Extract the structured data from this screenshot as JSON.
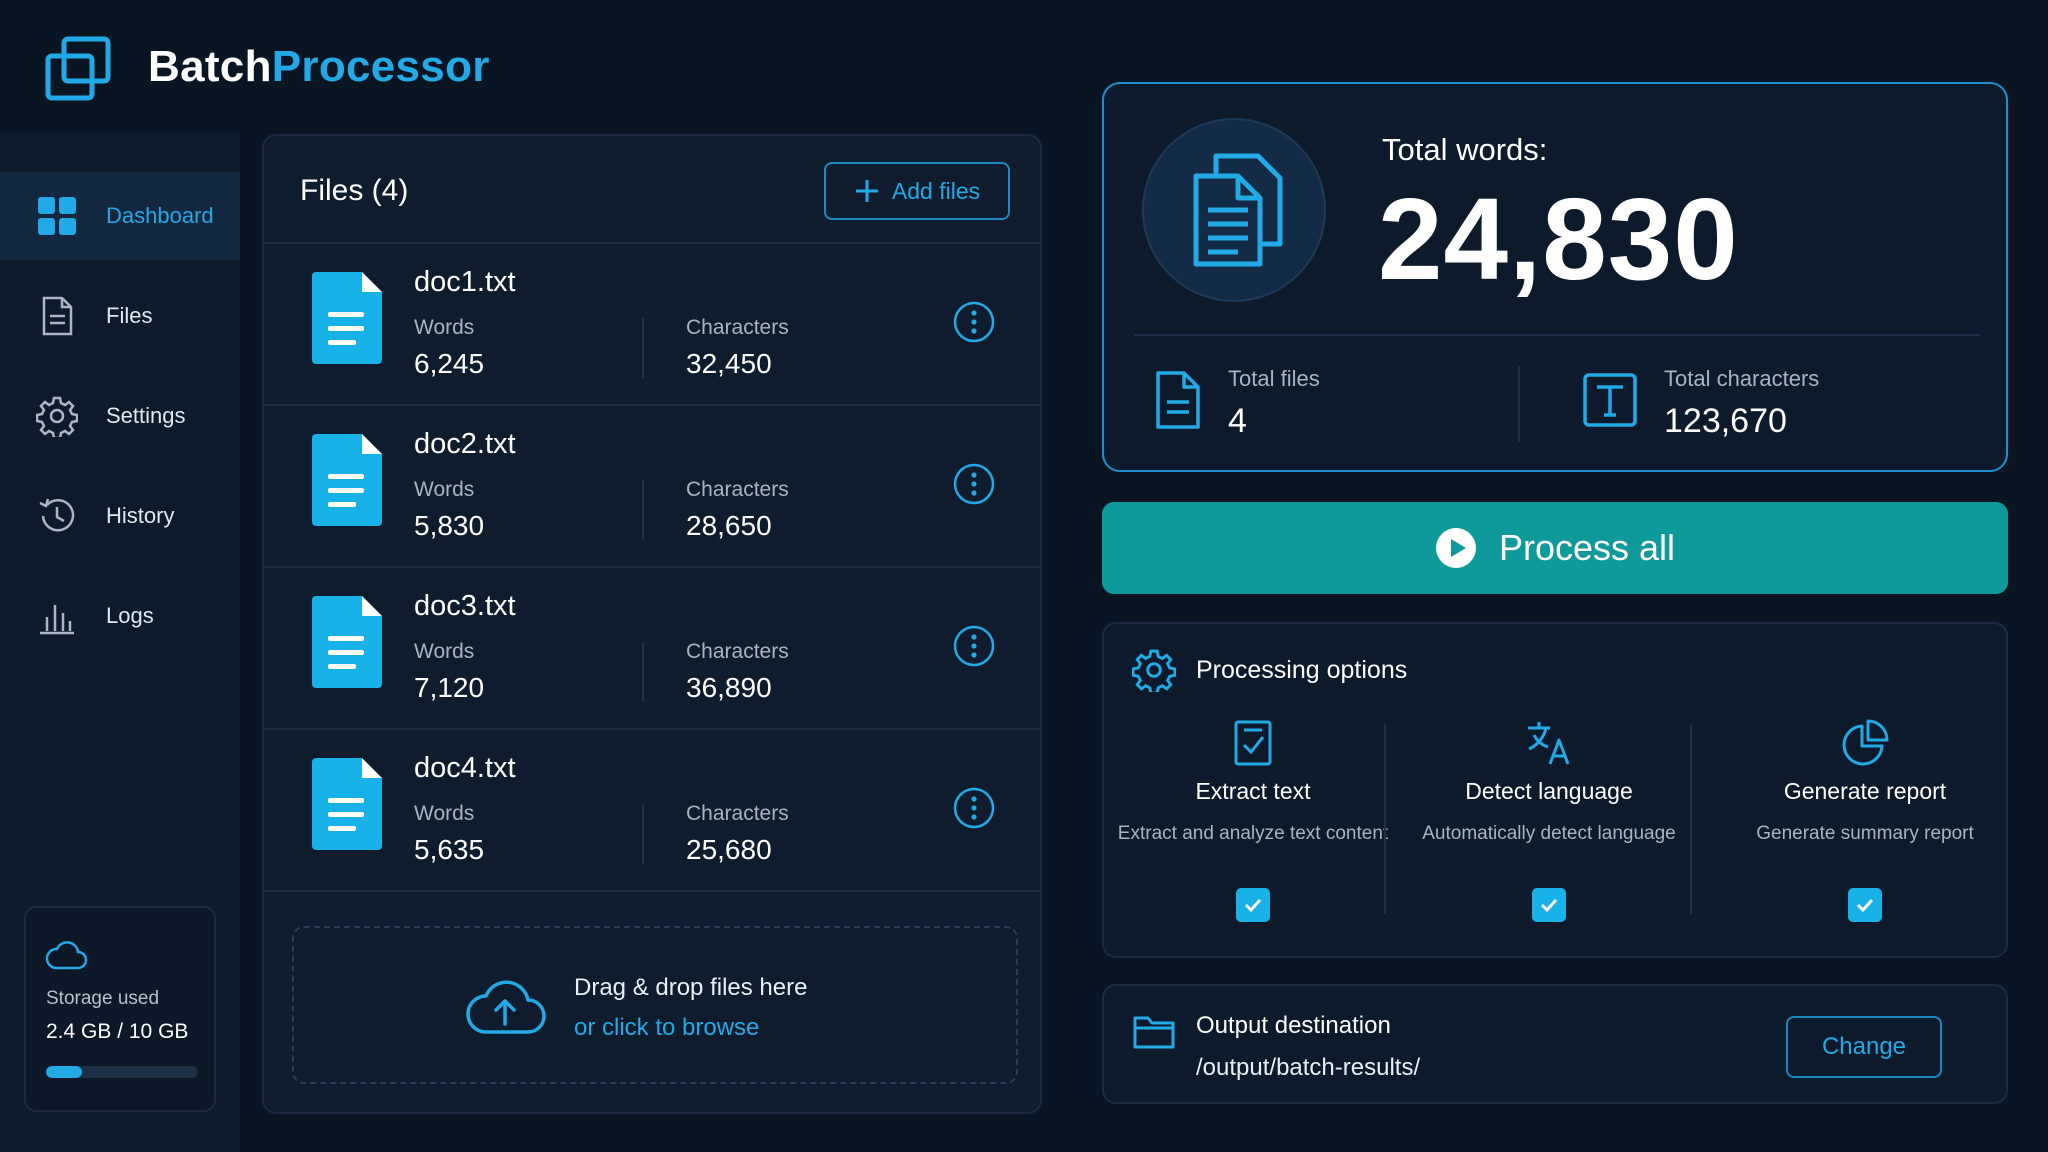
{
  "app": {
    "name_part1": "Batch",
    "name_part2": "Processor"
  },
  "sidebar": {
    "items": [
      {
        "label": "Dashboard",
        "icon": "dashboard-grid-icon",
        "active": true
      },
      {
        "label": "Files",
        "icon": "file-icon"
      },
      {
        "label": "Settings",
        "icon": "gear-icon"
      },
      {
        "label": "History",
        "icon": "history-icon"
      },
      {
        "label": "Logs",
        "icon": "bar-chart-icon"
      }
    ],
    "storage": {
      "label": "Storage used",
      "value": "2.4 GB / 10 GB",
      "fraction": 0.24
    }
  },
  "files": {
    "title": "Files (4)",
    "add_label": "Add files",
    "words_label": "Words",
    "chars_label": "Characters",
    "items": [
      {
        "name": "doc1.txt",
        "words": "6,245",
        "characters": "32,450"
      },
      {
        "name": "doc2.txt",
        "words": "5,830",
        "characters": "28,650"
      },
      {
        "name": "doc3.txt",
        "words": "7,120",
        "characters": "36,890"
      },
      {
        "name": "doc4.txt",
        "words": "5,635",
        "characters": "25,680"
      }
    ],
    "dropzone": {
      "line1": "Drag & drop files here",
      "line2": "or click to browse"
    }
  },
  "summary": {
    "total_words_label": "Total words:",
    "total_words": "24,830",
    "total_files_label": "Total files",
    "total_files": "4",
    "total_chars_label": "Total characters",
    "total_chars": "123,670"
  },
  "process": {
    "label": "Process all"
  },
  "options": {
    "title": "Processing options",
    "items": [
      {
        "name": "Extract text",
        "desc": "Extract and analyze text content",
        "checked": true,
        "icon": "checklist-icon"
      },
      {
        "name": "Detect language",
        "desc": "Automatically detect language",
        "checked": true,
        "icon": "translate-icon"
      },
      {
        "name": "Generate report",
        "desc": "Generate summary report",
        "checked": true,
        "icon": "pie-chart-icon"
      }
    ]
  },
  "output": {
    "title": "Output destination",
    "path": "/output/batch-results/",
    "change_label": "Change"
  },
  "colors": {
    "accent": "#22a9e6",
    "teal": "#0e9a9b",
    "bg": "#0a1524",
    "panel": "#0f1c2e"
  }
}
